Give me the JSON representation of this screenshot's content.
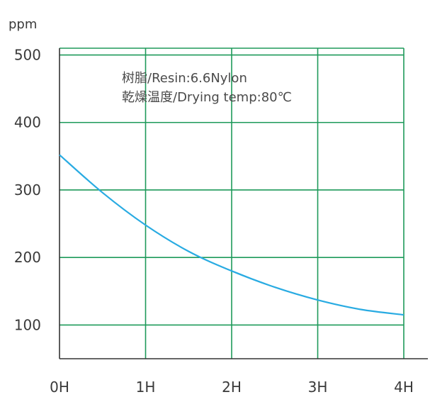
{
  "chart_data": {
    "type": "line",
    "title": "",
    "xlabel": "",
    "ylabel": "ppm",
    "x_tick_labels": [
      "0H",
      "1H",
      "2H",
      "3H",
      "4H"
    ],
    "y_ticks": [
      100,
      200,
      300,
      400,
      500
    ],
    "xlim": [
      0,
      4
    ],
    "ylim": [
      50,
      510
    ],
    "grid": true,
    "annotations": [
      "树脂/Resin:6.6Nylon",
      "乾燥温度/Drying temp:80℃"
    ],
    "series": [
      {
        "color": "#29abe2",
        "x": [
          0,
          0.5,
          1,
          1.5,
          2,
          2.5,
          3,
          3.5,
          4
        ],
        "y": [
          352,
          296,
          248,
          209,
          180,
          156,
          137,
          123,
          115
        ]
      }
    ]
  },
  "colors": {
    "grid": "#1e9a5a",
    "axis": "#333333"
  }
}
